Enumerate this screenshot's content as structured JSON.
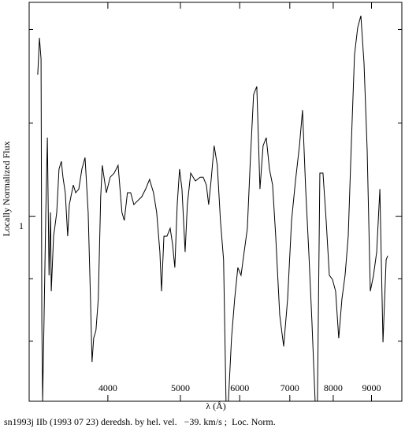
{
  "chart_data": {
    "type": "line",
    "xlabel": "λ (Å)",
    "ylabel": "Locally Normalized Flux",
    "caption": "sn1993j IIb (1993 07 23) deredsh. by hel. vel.   −39. km/s ;  Loc. Norm.",
    "xscale": "log",
    "xlim": [
      3140,
      9880
    ],
    "xticks": [
      4000,
      5000,
      6000,
      7000,
      8000,
      9000
    ],
    "ylim": [
      0.407,
      1.687
    ],
    "yticks": [
      1
    ],
    "yminor": [
      0.6,
      0.8,
      1.3,
      1.6
    ],
    "color": "#000000",
    "x": [
      3224,
      3241,
      3257,
      3265,
      3273,
      3288,
      3305,
      3321,
      3338,
      3353,
      3361,
      3385,
      3402,
      3418,
      3442,
      3467,
      3484,
      3509,
      3535,
      3553,
      3570,
      3597,
      3623,
      3658,
      3693,
      3729,
      3765,
      3792,
      3810,
      3829,
      3856,
      3884,
      3913,
      3932,
      3981,
      4029,
      4078,
      4128,
      4177,
      4207,
      4248,
      4291,
      4333,
      4386,
      4439,
      4493,
      4547,
      4603,
      4648,
      4694,
      4718,
      4753,
      4798,
      4845,
      4880,
      4915,
      4951,
      4987,
      5024,
      5073,
      5108,
      5161,
      5236,
      5313,
      5363,
      5415,
      5454,
      5494,
      5547,
      5601,
      5655,
      5710,
      5753,
      5795,
      5851,
      5908,
      5966,
      6025,
      6083,
      6143,
      6202,
      6262,
      6324,
      6386,
      6448,
      6511,
      6575,
      6639,
      6703,
      6786,
      6869,
      6953,
      7038,
      7123,
      7211,
      7279,
      7350,
      7421,
      7494,
      7567,
      7621,
      7678,
      7752,
      7828,
      7905,
      7981,
      8059,
      8137,
      8217,
      8297,
      8378,
      8460,
      8541,
      8625,
      8710,
      8795,
      8880,
      8967,
      9055,
      9144,
      9234,
      9323,
      9414,
      9460
    ],
    "values": [
      1.455,
      1.573,
      1.505,
      0.659,
      0.407,
      0.684,
      1.013,
      1.253,
      0.811,
      1.013,
      0.76,
      0.937,
      0.975,
      1.013,
      1.152,
      1.177,
      1.126,
      1.076,
      0.937,
      1.038,
      1.063,
      1.101,
      1.076,
      1.088,
      1.152,
      1.189,
      1.013,
      0.735,
      0.533,
      0.609,
      0.634,
      0.735,
      1.063,
      1.164,
      1.076,
      1.126,
      1.139,
      1.164,
      1.013,
      0.987,
      1.076,
      1.076,
      1.038,
      1.051,
      1.063,
      1.088,
      1.119,
      1.076,
      1.013,
      0.886,
      0.76,
      0.937,
      0.937,
      0.962,
      0.912,
      0.836,
      1.038,
      1.152,
      1.088,
      0.886,
      1.038,
      1.139,
      1.114,
      1.126,
      1.126,
      1.101,
      1.038,
      1.114,
      1.227,
      1.164,
      0.987,
      0.861,
      0.407,
      0.407,
      0.609,
      0.735,
      0.836,
      0.811,
      0.886,
      0.962,
      1.189,
      1.391,
      1.417,
      1.088,
      1.227,
      1.253,
      1.152,
      1.101,
      0.937,
      0.684,
      0.583,
      0.735,
      0.987,
      1.114,
      1.227,
      1.341,
      1.088,
      0.886,
      0.659,
      0.407,
      0.407,
      1.139,
      1.139,
      0.987,
      0.811,
      0.798,
      0.76,
      0.609,
      0.735,
      0.811,
      0.937,
      1.24,
      1.518,
      1.606,
      1.644,
      1.492,
      1.215,
      0.76,
      0.811,
      0.886,
      1.088,
      0.596,
      0.861,
      0.874
    ]
  }
}
